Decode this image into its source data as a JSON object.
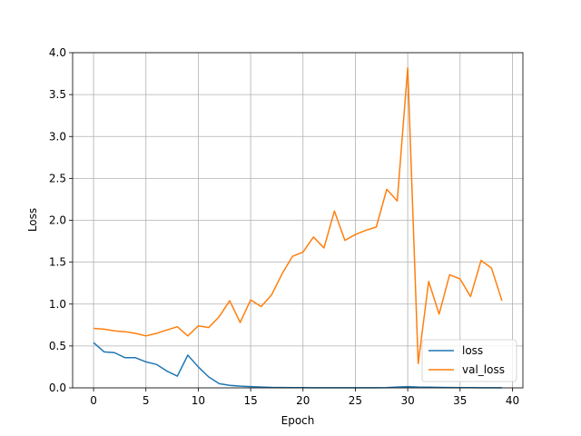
{
  "chart_data": {
    "type": "line",
    "title": "",
    "xlabel": "Epoch",
    "ylabel": "Loss",
    "xlim": [
      -2,
      41
    ],
    "ylim": [
      0,
      4.0
    ],
    "xticks": [
      "0",
      "5",
      "10",
      "15",
      "20",
      "25",
      "30",
      "35",
      "40"
    ],
    "yticks": [
      "0.0",
      "0.5",
      "1.0",
      "1.5",
      "2.0",
      "2.5",
      "3.0",
      "3.5",
      "4.0"
    ],
    "grid": true,
    "legend_position": "lower-right",
    "x": [
      0,
      1,
      2,
      3,
      4,
      5,
      6,
      7,
      8,
      9,
      10,
      11,
      12,
      13,
      14,
      15,
      16,
      17,
      18,
      19,
      20,
      21,
      22,
      23,
      24,
      25,
      26,
      27,
      28,
      29,
      30,
      31,
      32,
      33,
      34,
      35,
      36,
      37,
      38,
      39
    ],
    "series": [
      {
        "name": "loss",
        "color": "#1f77b4",
        "values": [
          0.54,
          0.43,
          0.42,
          0.36,
          0.36,
          0.31,
          0.28,
          0.2,
          0.14,
          0.39,
          0.25,
          0.13,
          0.05,
          0.03,
          0.02,
          0.015,
          0.01,
          0.005,
          0.004,
          0.003,
          0.003,
          0.002,
          0.002,
          0.002,
          0.002,
          0.002,
          0.002,
          0.002,
          0.003,
          0.01,
          0.015,
          0.01,
          0.008,
          0.005,
          0.004,
          0.003,
          0.003,
          0.002,
          0.002,
          0.002
        ]
      },
      {
        "name": "val_loss",
        "color": "#ff7f0e",
        "values": [
          0.71,
          0.7,
          0.68,
          0.67,
          0.65,
          0.62,
          0.65,
          0.69,
          0.73,
          0.62,
          0.74,
          0.72,
          0.85,
          1.04,
          0.78,
          1.05,
          0.97,
          1.11,
          1.36,
          1.57,
          1.62,
          1.8,
          1.67,
          2.11,
          1.76,
          1.83,
          1.88,
          1.92,
          2.37,
          2.23,
          3.82,
          0.29,
          1.27,
          0.88,
          1.35,
          1.3,
          1.09,
          1.52,
          1.43,
          1.04
        ]
      }
    ]
  }
}
